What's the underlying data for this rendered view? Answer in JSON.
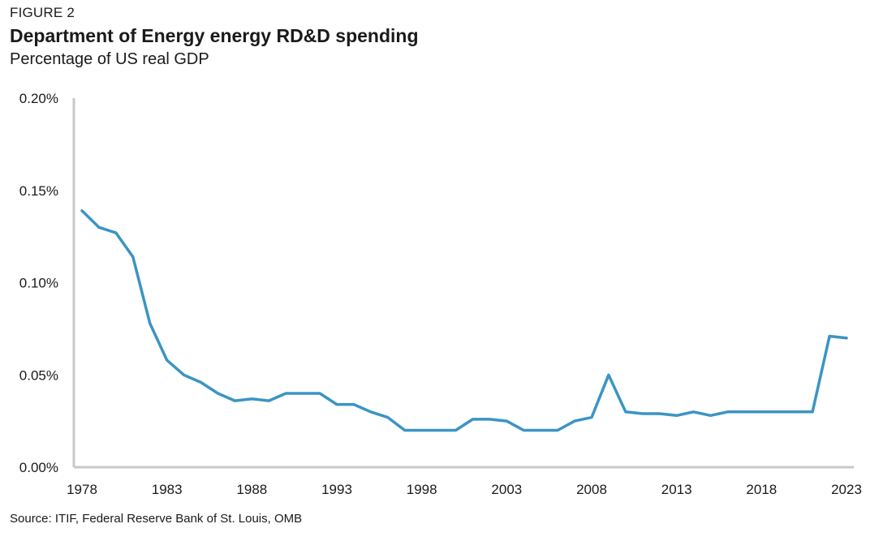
{
  "figure_label": "FIGURE 2",
  "source": "Source: ITIF, Federal Reserve Bank of St. Louis, OMB",
  "colors": {
    "line": "#3b94c4",
    "axis": "#c8c8c8",
    "text": "#1a1a1a"
  },
  "chart_data": {
    "type": "line",
    "title": "Department of Energy energy RD&D spending",
    "subtitle": "Percentage of US real GDP",
    "xlabel": "",
    "ylabel": "",
    "xlim": [
      1978,
      2023
    ],
    "ylim": [
      0,
      0.2
    ],
    "grid": false,
    "x_ticks": [
      "1978",
      "1983",
      "1988",
      "1993",
      "1998",
      "2003",
      "2008",
      "2013",
      "2018",
      "2023"
    ],
    "y_ticks": [
      "0.00%",
      "0.05%",
      "0.10%",
      "0.15%",
      "0.20%"
    ],
    "y_tick_values": [
      0,
      0.05,
      0.1,
      0.15,
      0.2
    ],
    "series": [
      {
        "x": [
          1978,
          1979,
          1980,
          1981,
          1982,
          1983,
          1984,
          1985,
          1986,
          1987,
          1988,
          1989,
          1990,
          1991,
          1992,
          1993,
          1994,
          1995,
          1996,
          1997,
          1998,
          1999,
          2000,
          2001,
          2002,
          2003,
          2004,
          2005,
          2006,
          2007,
          2008,
          2009,
          2010,
          2011,
          2012,
          2013,
          2014,
          2015,
          2016,
          2017,
          2018,
          2019,
          2020,
          2021,
          2022,
          2023
        ],
        "values": [
          0.139,
          0.13,
          0.127,
          0.114,
          0.078,
          0.058,
          0.05,
          0.046,
          0.04,
          0.036,
          0.037,
          0.036,
          0.04,
          0.04,
          0.04,
          0.034,
          0.034,
          0.03,
          0.027,
          0.02,
          0.02,
          0.02,
          0.02,
          0.026,
          0.026,
          0.025,
          0.02,
          0.02,
          0.02,
          0.025,
          0.027,
          0.05,
          0.03,
          0.029,
          0.029,
          0.028,
          0.03,
          0.028,
          0.03,
          0.03,
          0.03,
          0.03,
          0.03,
          0.03,
          0.071,
          0.07
        ]
      }
    ]
  }
}
